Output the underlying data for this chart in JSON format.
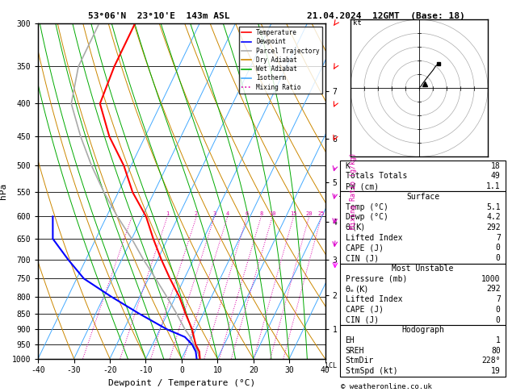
{
  "title_left": "53°06'N  23°10'E  143m ASL",
  "title_right": "21.04.2024  12GMT  (Base: 18)",
  "xlabel": "Dewpoint / Temperature (°C)",
  "ylabel_left": "hPa",
  "copyright": "© weatheronline.co.uk",
  "bg_color": "#ffffff",
  "plot_bg": "#ffffff",
  "pressure_levels": [
    300,
    350,
    400,
    450,
    500,
    550,
    600,
    650,
    700,
    750,
    800,
    850,
    900,
    950,
    1000
  ],
  "temp_xlim": [
    -40,
    40
  ],
  "SKEW": 45.0,
  "temperature_profile": {
    "pressure": [
      1000,
      975,
      950,
      925,
      900,
      850,
      800,
      750,
      700,
      650,
      600,
      550,
      500,
      450,
      400,
      350,
      300
    ],
    "temp": [
      5.1,
      4.0,
      2.0,
      0.5,
      -1.0,
      -5.0,
      -9.0,
      -14.0,
      -19.0,
      -24.0,
      -29.0,
      -36.0,
      -42.0,
      -50.0,
      -57.0,
      -58.0,
      -58.0
    ],
    "color": "#ff0000",
    "linewidth": 1.5
  },
  "dewpoint_profile": {
    "pressure": [
      1000,
      975,
      950,
      925,
      900,
      850,
      800,
      750,
      700,
      650,
      600
    ],
    "temp": [
      4.2,
      3.0,
      1.0,
      -2.0,
      -8.0,
      -18.0,
      -28.0,
      -38.0,
      -45.0,
      -52.0,
      -55.0
    ],
    "color": "#0000ff",
    "linewidth": 1.5
  },
  "parcel_profile": {
    "pressure": [
      1000,
      975,
      950,
      925,
      900,
      850,
      800,
      750,
      700,
      650,
      600,
      550,
      500,
      450,
      400,
      350,
      300
    ],
    "temp": [
      5.1,
      3.5,
      1.5,
      -0.5,
      -3.0,
      -7.5,
      -12.5,
      -18.0,
      -24.0,
      -30.0,
      -37.0,
      -44.0,
      -51.0,
      -58.0,
      -65.0,
      -68.0,
      -68.0
    ],
    "color": "#aaaaaa",
    "linewidth": 1.2,
    "linestyle": "-"
  },
  "isotherms": {
    "values": [
      -40,
      -30,
      -20,
      -10,
      0,
      10,
      20,
      30,
      40
    ],
    "color": "#44aaff",
    "linewidth": 0.7,
    "alpha": 1.0
  },
  "dry_adiabats": {
    "theta_values": [
      -30,
      -20,
      -10,
      0,
      10,
      20,
      30,
      40,
      50,
      60,
      70,
      80,
      90,
      100,
      110,
      120
    ],
    "color": "#cc8800",
    "linewidth": 0.7,
    "alpha": 1.0
  },
  "moist_adiabats": {
    "values": [
      -15,
      -10,
      -5,
      0,
      5,
      10,
      15,
      20,
      25,
      30,
      35
    ],
    "color": "#00aa00",
    "linewidth": 0.7,
    "alpha": 1.0
  },
  "mixing_ratios": {
    "values": [
      0.4,
      1,
      2,
      3,
      4,
      6,
      8,
      10,
      15,
      20,
      25
    ],
    "labels": [
      "",
      "1",
      "2",
      "3",
      "4",
      "6",
      "8",
      "10",
      "15",
      "20",
      "25"
    ],
    "color": "#dd00aa",
    "linewidth": 0.7,
    "linestyle": ":"
  },
  "km_ticks": {
    "km": [
      1,
      2,
      3,
      4,
      5,
      6,
      7
    ],
    "pressure": [
      898,
      795,
      700,
      612,
      530,
      454,
      383
    ]
  },
  "hodograph": {
    "u_data": [
      0.5,
      1.5,
      3.0,
      5.0,
      6.0,
      7.0
    ],
    "v_data": [
      0.5,
      2.0,
      4.0,
      6.5,
      8.0,
      9.0
    ],
    "storm_u": 2.0,
    "storm_v": 1.5
  },
  "wind_barbs_pressure": [
    300,
    350,
    400,
    450,
    500,
    550,
    600,
    650,
    700
  ],
  "wind_barbs_speed": [
    30,
    28,
    25,
    20,
    15,
    12,
    10,
    8,
    5
  ],
  "wind_barbs_dir": [
    250,
    245,
    240,
    235,
    225,
    215,
    210,
    200,
    190
  ],
  "info_table": {
    "K": "18",
    "Totals_Totals": "49",
    "PW_cm": "1.1",
    "Temp_C": "5.1",
    "Dewp_C": "4.2",
    "theta_e_sfc": "292",
    "LI_sfc": "7",
    "CAPE_sfc": "0",
    "CIN_sfc": "0",
    "Pressure_mu": "1000",
    "theta_e_mu": "292",
    "LI_mu": "7",
    "CAPE_mu": "0",
    "CIN_mu": "0",
    "EH": "1",
    "SREH": "80",
    "StmDir": "228°",
    "StmSpd_kt": "19"
  },
  "legend_items": [
    {
      "label": "Temperature",
      "color": "#ff0000",
      "ls": "-"
    },
    {
      "label": "Dewpoint",
      "color": "#0000ff",
      "ls": "-"
    },
    {
      "label": "Parcel Trajectory",
      "color": "#aaaaaa",
      "ls": "-"
    },
    {
      "label": "Dry Adiabat",
      "color": "#cc8800",
      "ls": "-"
    },
    {
      "label": "Wet Adiabat",
      "color": "#00aa00",
      "ls": "-"
    },
    {
      "label": "Isotherm",
      "color": "#44aaff",
      "ls": "-"
    },
    {
      "label": "Mixing Ratio",
      "color": "#dd00aa",
      "ls": ":"
    }
  ]
}
